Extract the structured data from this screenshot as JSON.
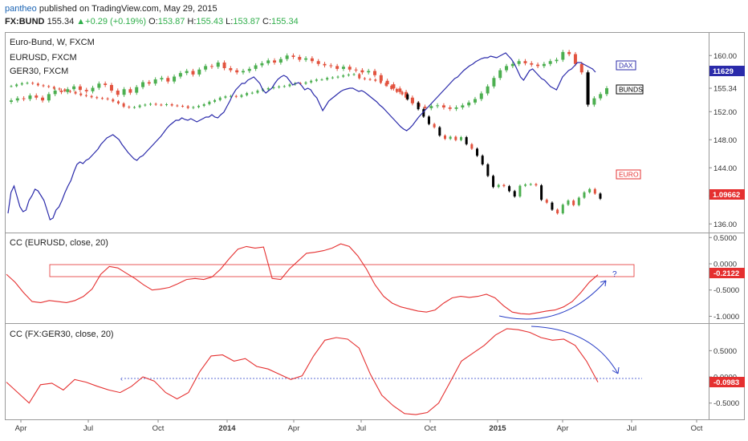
{
  "header": {
    "author": "pantheo",
    "published_text": "published on TradingView.com, May 29, 2015",
    "symbol": "FX:BUND",
    "last": "155.34",
    "change": "+0.29 (+0.19%)",
    "open_label": "O:",
    "open": "153.87",
    "high_label": "H:",
    "high": "155.43",
    "low_label": "L:",
    "low": "153.87",
    "close_label": "C:",
    "close": "155.34"
  },
  "legend": [
    "Euro-Bund, W, FXCM",
    "EURUSD, FXCM",
    "GER30, FXCM"
  ],
  "colors": {
    "bull": "#4caf50",
    "bear": "#e2533f",
    "black": "#000000",
    "dax": "#2a2aaa",
    "cc": "#e53030",
    "anno": "#2a3fc6"
  },
  "chart_data": [
    {
      "type": "candlestick",
      "title": "Euro-Bund, W, FXCM",
      "price_axis": {
        "ylim": [
          135,
          163
        ],
        "ticks": [
          160.0,
          155.34,
          152.0,
          148.0,
          144.0,
          140.0,
          136.0
        ]
      },
      "price_tick_labels": [
        "160.00",
        "155.34",
        "152.00",
        "148.00",
        "144.00",
        "140.00",
        "136.00"
      ],
      "bund_close": [
        153.6,
        153.9,
        153.8,
        154.3,
        154.0,
        153.6,
        154.5,
        155.0,
        154.8,
        155.2,
        155.6,
        155.1,
        154.9,
        155.4,
        156.0,
        155.8,
        155.0,
        154.4,
        155.2,
        154.7,
        155.5,
        156.2,
        156.0,
        156.6,
        156.8,
        156.3,
        157.0,
        157.5,
        157.8,
        157.3,
        158.0,
        158.5,
        158.4,
        159.0,
        158.2,
        157.9,
        157.6,
        157.8,
        158.1,
        158.6,
        158.9,
        159.3,
        159.0,
        159.5,
        160.0,
        159.8,
        159.4,
        159.6,
        159.2,
        158.8,
        158.6,
        158.5,
        158.1,
        158.4,
        158.0,
        157.9,
        157.6,
        157.8,
        157.2,
        156.4,
        155.9,
        155.3,
        154.8,
        154.0,
        153.2,
        152.7,
        152.5,
        152.8,
        152.9,
        152.6,
        152.4,
        152.6,
        152.9,
        153.3,
        153.8,
        154.6,
        155.6,
        156.8,
        157.9,
        158.5,
        158.8,
        159.2,
        158.9,
        158.7,
        158.5,
        158.8,
        159.2,
        159.4,
        160.5,
        160.2,
        158.8,
        157.6,
        153.0,
        153.9,
        154.5,
        155.34
      ],
      "eurusd_close": [
        1.37,
        1.374,
        1.377,
        1.378,
        1.376,
        1.372,
        1.37,
        1.368,
        1.364,
        1.362,
        1.358,
        1.356,
        1.352,
        1.348,
        1.346,
        1.343,
        1.341,
        1.34,
        1.338,
        1.333,
        1.328,
        1.32,
        1.318,
        1.319,
        1.323,
        1.325,
        1.327,
        1.325,
        1.324,
        1.326,
        1.323,
        1.322,
        1.321,
        1.317,
        1.319,
        1.322,
        1.326,
        1.332,
        1.336,
        1.342,
        1.345,
        1.346,
        1.344,
        1.348,
        1.353,
        1.354,
        1.359,
        1.362,
        1.365,
        1.367,
        1.369,
        1.37,
        1.374,
        1.377,
        1.376,
        1.379,
        1.383,
        1.386,
        1.386,
        1.39,
        1.391,
        1.393,
        1.396,
        1.398,
        1.399,
        1.389,
        1.387,
        1.386,
        1.383,
        1.378,
        1.371,
        1.363,
        1.356,
        1.35,
        1.338,
        1.33,
        1.314,
        1.296,
        1.278,
        1.27,
        1.25,
        1.242,
        1.247,
        1.239,
        1.246,
        1.229,
        1.218,
        1.201,
        1.18,
        1.152,
        1.125,
        1.13,
        1.127,
        1.115,
        1.102,
        1.128,
        1.131,
        1.132,
        1.129,
        1.094,
        1.087,
        1.07,
        1.061,
        1.082,
        1.092,
        1.081,
        1.099,
        1.112,
        1.12,
        1.109,
        1.0966
      ],
      "dax_series": "GER30 (blue line) on main pane",
      "labels": [
        {
          "text": "DAX",
          "color": "#2a2aaa"
        },
        {
          "text": "BUNDS",
          "color": "#000000"
        },
        {
          "text": "EURO",
          "color": "#e53030"
        }
      ],
      "price_badges": [
        {
          "text": "11629",
          "bg": "#2a2aaa"
        },
        {
          "text": "1.09662",
          "bg": "#e53030"
        }
      ]
    },
    {
      "type": "line",
      "title": "CC (EURUSD, close, 20)",
      "ylim": [
        -1.1,
        0.55
      ],
      "tick_labels": [
        "0.5000",
        "0.0000",
        "-0.5000",
        "-1.0000"
      ],
      "ticks": [
        0.5,
        0.0,
        -0.5,
        -1.0
      ],
      "last_value": "-0.2122",
      "annotation": "?",
      "values": [
        -0.2,
        -0.35,
        -0.55,
        -0.72,
        -0.74,
        -0.7,
        -0.72,
        -0.74,
        -0.7,
        -0.62,
        -0.48,
        -0.2,
        -0.05,
        -0.08,
        -0.18,
        -0.28,
        -0.4,
        -0.5,
        -0.48,
        -0.45,
        -0.38,
        -0.3,
        -0.28,
        -0.3,
        -0.25,
        -0.1,
        0.1,
        0.28,
        0.33,
        0.3,
        0.32,
        -0.28,
        -0.3,
        -0.1,
        0.05,
        0.2,
        0.22,
        0.25,
        0.3,
        0.38,
        0.33,
        0.15,
        -0.1,
        -0.4,
        -0.62,
        -0.75,
        -0.82,
        -0.86,
        -0.9,
        -0.92,
        -0.88,
        -0.75,
        -0.65,
        -0.62,
        -0.64,
        -0.62,
        -0.58,
        -0.65,
        -0.8,
        -0.92,
        -0.95,
        -0.96,
        -0.93,
        -0.9,
        -0.88,
        -0.82,
        -0.72,
        -0.55,
        -0.35,
        -0.21
      ]
    },
    {
      "type": "line",
      "title": "CC (FX:GER30, close, 20)",
      "ylim": [
        -0.78,
        0.98
      ],
      "tick_labels": [
        "0.5000",
        "0.0000",
        "-0.5000"
      ],
      "ticks": [
        0.5,
        0.0,
        -0.5
      ],
      "last_value": "-0.0983",
      "values": [
        -0.1,
        -0.3,
        -0.5,
        -0.15,
        -0.12,
        -0.25,
        -0.05,
        -0.1,
        -0.18,
        -0.25,
        -0.3,
        -0.18,
        0.0,
        -0.08,
        -0.3,
        -0.42,
        -0.3,
        0.1,
        0.4,
        0.42,
        0.3,
        0.35,
        0.2,
        0.15,
        0.05,
        -0.05,
        0.02,
        0.4,
        0.7,
        0.75,
        0.72,
        0.55,
        0.05,
        -0.35,
        -0.55,
        -0.7,
        -0.72,
        -0.68,
        -0.5,
        -0.1,
        0.3,
        0.45,
        0.6,
        0.8,
        0.92,
        0.9,
        0.85,
        0.75,
        0.7,
        0.72,
        0.6,
        0.3,
        -0.1
      ]
    }
  ],
  "time_axis": {
    "labels": [
      "Apr",
      "Jul",
      "Oct",
      "2014",
      "Apr",
      "Jul",
      "Oct",
      "2015",
      "Apr",
      "Jul",
      "Oct"
    ],
    "bold": [
      false,
      false,
      false,
      true,
      false,
      false,
      false,
      true,
      false,
      false,
      false
    ]
  }
}
